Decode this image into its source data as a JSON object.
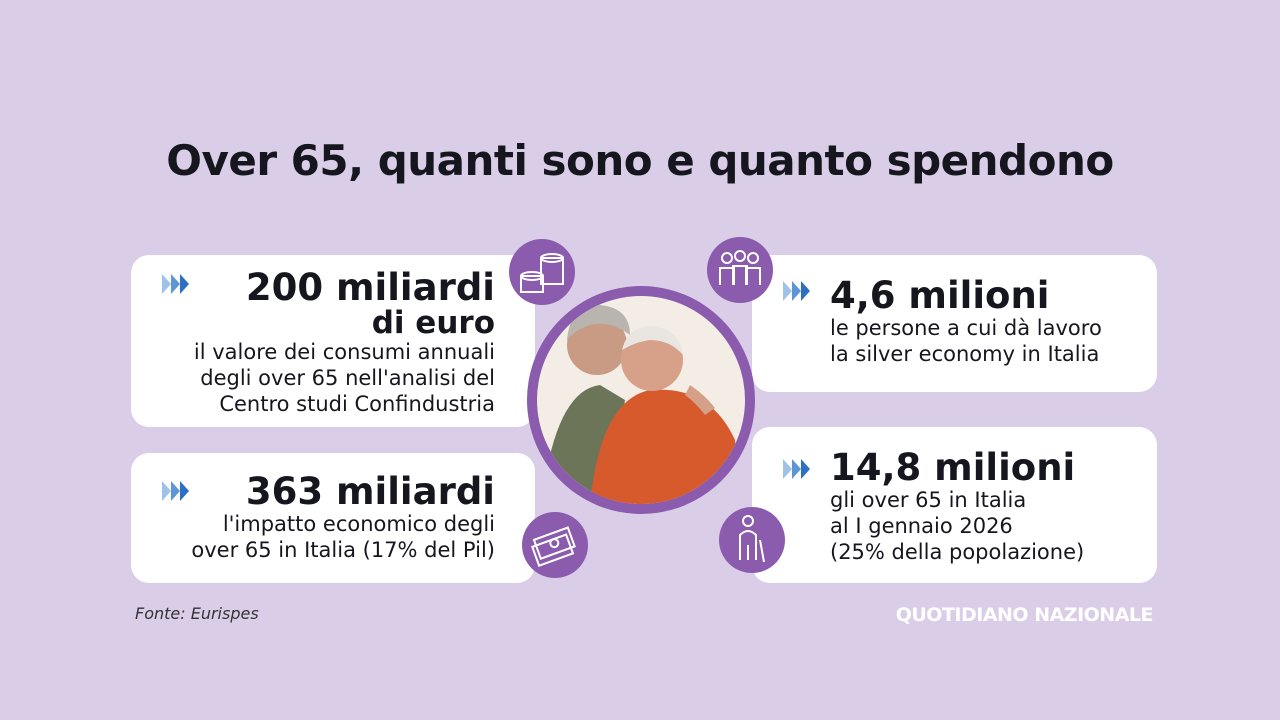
{
  "title": "Over 65, quanti sono e quanto spendono",
  "cards": [
    {
      "headline": "200 miliardi",
      "subheadline": "di euro",
      "lines": [
        "il valore dei consumi annuali",
        "degli over 65 nell'analisi del",
        "Centro studi Confindustria"
      ]
    },
    {
      "headline": "363 miliardi",
      "lines": [
        "l'impatto economico degli",
        "over 65 in Italia (17% del Pil)"
      ]
    },
    {
      "headline": "4,6 milioni",
      "lines": [
        "le persone a cui dà lavoro",
        "la silver economy in Italia"
      ]
    },
    {
      "headline": "14,8 milioni",
      "lines": [
        "gli over 65 in Italia",
        "al I gennaio 2026",
        "(25% della popolazione)"
      ]
    }
  ],
  "source": "Fonte: Eurispes",
  "brand": "QUOTIDIANO NAZIONALE"
}
